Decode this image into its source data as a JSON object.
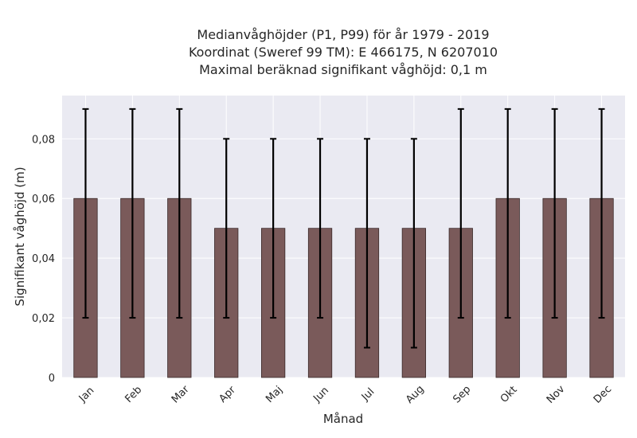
{
  "chart_data": {
    "type": "bar",
    "title_lines": [
      "Medianvåghöjder (P1, P99) för år 1979 - 2019",
      "Koordinat (Sweref 99 TM): E 466175, N 6207010",
      "Maximal beräknad signifikant våghöjd: 0,1 m"
    ],
    "xlabel": "Månad",
    "ylabel": "Signifikant våghöjd (m)",
    "categories": [
      "Jan",
      "Feb",
      "Mar",
      "Apr",
      "Maj",
      "Jun",
      "Jul",
      "Aug",
      "Sep",
      "Okt",
      "Nov",
      "Dec"
    ],
    "values": [
      0.06,
      0.06,
      0.06,
      0.05,
      0.05,
      0.05,
      0.05,
      0.05,
      0.05,
      0.06,
      0.06,
      0.06
    ],
    "p1": [
      0.02,
      0.02,
      0.02,
      0.02,
      0.02,
      0.02,
      0.01,
      0.01,
      0.02,
      0.02,
      0.02,
      0.02
    ],
    "p99": [
      0.09,
      0.09,
      0.09,
      0.08,
      0.08,
      0.08,
      0.08,
      0.08,
      0.09,
      0.09,
      0.09,
      0.09
    ],
    "yticks": [
      0,
      0.02,
      0.04,
      0.06,
      0.08
    ],
    "ytick_labels": [
      "0",
      "0,02",
      "0,04",
      "0,06",
      "0,08"
    ],
    "ylim": [
      0,
      0.0945
    ],
    "grid": true,
    "colors": {
      "bar": "#7a5a5a",
      "bar_edge": "#3a2a2a",
      "errorbar": "#000000",
      "plot_background": "#eaeaf2",
      "grid": "#ffffff"
    }
  }
}
